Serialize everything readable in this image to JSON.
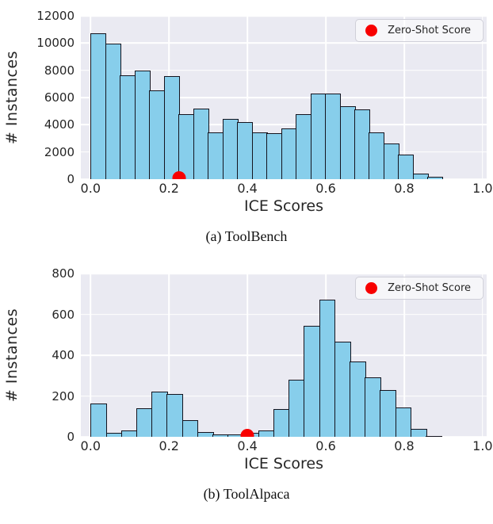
{
  "colors": {
    "bar-fill": "#87ceeb",
    "bar-edge": "#14141f",
    "panel-bg": "#eaeaf2",
    "grid": "#ffffff",
    "dot": "#f80000",
    "text": "#262626",
    "legend-border": "#cfcfd8"
  },
  "chart_data": [
    {
      "type": "bar",
      "caption": "(a) ToolBench",
      "xlabel": "ICE Scores",
      "ylabel": "# Instances",
      "legend_label": "Zero-Shot Score",
      "legend_position": "upper right",
      "grid": true,
      "xlim": [
        0.0,
        1.0
      ],
      "ylim": [
        0,
        12000
      ],
      "xticks": [
        0.0,
        0.2,
        0.4,
        0.6,
        0.8,
        1.0
      ],
      "yticks": [
        0,
        2000,
        4000,
        6000,
        8000,
        10000,
        12000
      ],
      "bin_start": 0.0,
      "bin_width": 0.0375,
      "values": [
        10700,
        9950,
        7650,
        8000,
        6500,
        7600,
        4750,
        5200,
        3450,
        4450,
        4200,
        3450,
        3400,
        3700,
        4800,
        6300,
        6280,
        5350,
        5150,
        3450,
        2650,
        1800,
        400,
        150
      ],
      "zero_shot_x": 0.225,
      "zero_shot_y": 0
    },
    {
      "type": "bar",
      "caption": "(b) ToolAlpaca",
      "xlabel": "ICE Scores",
      "ylabel": "# Instances",
      "legend_label": "Zero-Shot Score",
      "legend_position": "upper right",
      "grid": true,
      "xlim": [
        0.0,
        1.0
      ],
      "ylim": [
        0,
        800
      ],
      "xticks": [
        0.0,
        0.2,
        0.4,
        0.6,
        0.8,
        1.0
      ],
      "yticks": [
        0,
        200,
        400,
        600,
        800
      ],
      "bin_start": 0.0,
      "bin_width": 0.039,
      "values": [
        165,
        18,
        30,
        140,
        222,
        208,
        80,
        25,
        10,
        10,
        18,
        32,
        135,
        280,
        545,
        670,
        465,
        370,
        290,
        230,
        145,
        38,
        5
      ],
      "zero_shot_x": 0.4,
      "zero_shot_y": 0
    }
  ]
}
